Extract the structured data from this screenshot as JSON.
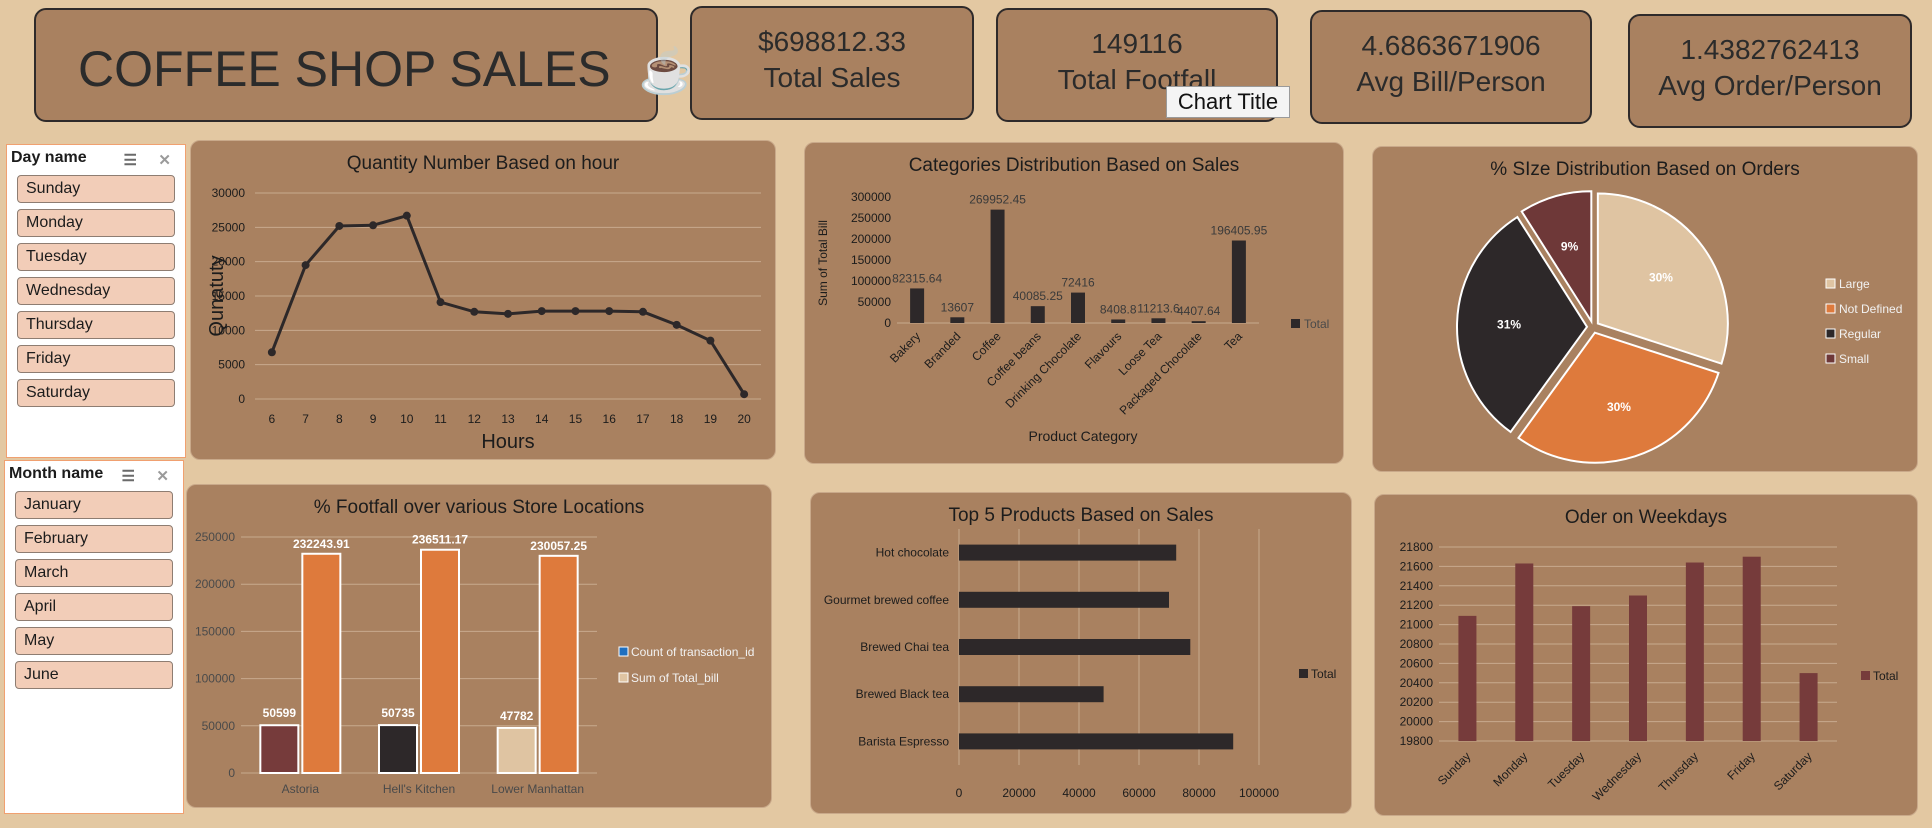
{
  "header": {
    "title": "COFFEE SHOP SALES",
    "title_icon": "☕"
  },
  "kpis": [
    {
      "value": "$698812.33",
      "label": "Total Sales"
    },
    {
      "value": "149116",
      "label": "Total Footfall"
    },
    {
      "value": "4.6863671906",
      "label": "Avg Bill/Person"
    },
    {
      "value": "1.4382762413",
      "label": "Avg Order/Person"
    }
  ],
  "tooltip": "Chart Title",
  "slicers": {
    "day": {
      "title": "Day name",
      "items": [
        "Sunday",
        "Monday",
        "Tuesday",
        "Wednesday",
        "Thursday",
        "Friday",
        "Saturday"
      ]
    },
    "month": {
      "title": "Month name",
      "items": [
        "January",
        "February",
        "March",
        "April",
        "May",
        "June"
      ]
    }
  },
  "colors": {
    "background": "#e3c8a2",
    "panel": "#a98160",
    "dark": "#2d2829",
    "orange": "#de7a3c",
    "maroon": "#6e3838",
    "beige": "#dfc4a2",
    "bar_maroon": "#763b3b"
  },
  "chart_data": [
    {
      "type": "line",
      "title": "Quantity Number Based on hour",
      "xlabel": "Hours",
      "ylabel": "Qunatuty",
      "x": [
        6,
        7,
        8,
        9,
        10,
        11,
        12,
        13,
        14,
        15,
        16,
        17,
        18,
        19,
        20
      ],
      "values": [
        6800,
        19500,
        25200,
        25300,
        26700,
        14100,
        12700,
        12400,
        12800,
        12800,
        12800,
        12700,
        10800,
        8500,
        700
      ],
      "ylim": [
        0,
        30000
      ],
      "yticks": [
        "0",
        "5000",
        "10000",
        "15000",
        "20000",
        "25000",
        "30000"
      ],
      "grid": true
    },
    {
      "type": "bar",
      "title": "Categories Distribution Based on Sales",
      "xlabel": "Product Category",
      "ylabel": "Sum of Total Bill",
      "categories": [
        "Bakery",
        "Branded",
        "Coffee",
        "Coffee beans",
        "Drinking Chocolate",
        "Flavours",
        "Loose Tea",
        "Packaged Chocolate",
        "Tea"
      ],
      "values": [
        82315.64,
        13607,
        269952.45,
        40085.25,
        72416,
        8408.8,
        11213.6,
        4407.64,
        196405.95
      ],
      "data_labels": [
        "82315.64",
        "13607",
        "269952.45",
        "40085.25",
        "72416",
        "8408.8",
        "11213.6",
        "4407.64",
        "196405.95"
      ],
      "ylim": [
        0,
        300000
      ],
      "yticks": [
        "0",
        "50000",
        "100000",
        "150000",
        "200000",
        "250000",
        "300000"
      ],
      "legend": [
        "Total"
      ],
      "legend_position": "right"
    },
    {
      "type": "pie",
      "title": "% SIze Distribution Based on Orders",
      "categories": [
        "Large",
        "Not Defined",
        "Regular",
        "Small"
      ],
      "values": [
        30,
        30,
        31,
        9
      ],
      "data_labels": [
        "30%",
        "30%",
        "31%",
        "9%"
      ],
      "colors": [
        "#dfc4a2",
        "#de7a3c",
        "#2d2829",
        "#6e3838"
      ],
      "legend_position": "right"
    },
    {
      "type": "bar",
      "title": "% Footfall over various Store Locations",
      "categories": [
        "Astoria",
        "Hell's Kitchen",
        "Lower Manhattan"
      ],
      "series": [
        {
          "name": "Count of transaction_id",
          "values": [
            50599,
            50735,
            47782
          ],
          "labels": [
            "50599",
            "50735",
            "47782"
          ]
        },
        {
          "name": "Sum of Total_bill",
          "values": [
            232243.91,
            236511.17,
            230057.25
          ],
          "labels": [
            "232243.91",
            "236511.17",
            "230057.25"
          ]
        }
      ],
      "ylim": [
        0,
        250000
      ],
      "yticks": [
        "0",
        "50000",
        "100000",
        "150000",
        "200000",
        "250000"
      ],
      "legend_position": "right"
    },
    {
      "type": "bar",
      "orientation": "horizontal",
      "title": "Top 5 Products Based on Sales",
      "categories": [
        "Hot chocolate",
        "Gourmet brewed coffee",
        "Brewed Chai tea",
        "Brewed Black tea",
        "Barista Espresso"
      ],
      "values": [
        72400,
        70000,
        77100,
        48200,
        91400
      ],
      "xlim": [
        0,
        100000
      ],
      "xticks": [
        "0",
        "20000",
        "40000",
        "60000",
        "80000",
        "100000"
      ],
      "legend": [
        "Total"
      ],
      "legend_position": "right"
    },
    {
      "type": "bar",
      "title": "Oder on Weekdays",
      "categories": [
        "Sunday",
        "Monday",
        "Tuesday",
        "Wednesday",
        "Thursday",
        "Friday",
        "Saturday"
      ],
      "values": [
        21090,
        21630,
        21190,
        21300,
        21640,
        21700,
        20500
      ],
      "ylim": [
        19800,
        21800
      ],
      "yticks": [
        "19800",
        "20000",
        "20200",
        "20400",
        "20600",
        "20800",
        "21000",
        "21200",
        "21400",
        "21600",
        "21800"
      ],
      "legend": [
        "Total"
      ],
      "legend_position": "right"
    }
  ]
}
